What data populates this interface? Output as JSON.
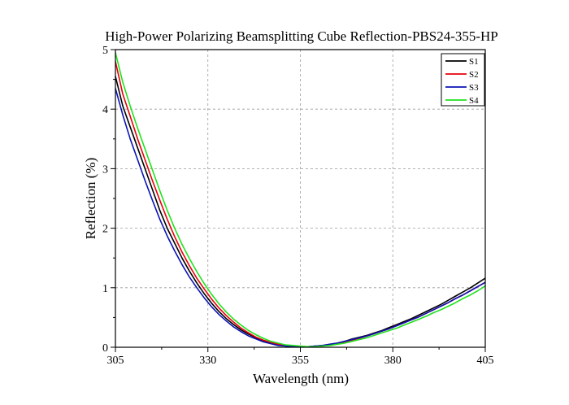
{
  "chart_data": {
    "type": "line",
    "title": "High-Power Polarizing Beamsplitting Cube Reflection-PBS24-355-HP",
    "xlabel": "Wavelength (nm)",
    "ylabel": "Reflection (%)",
    "xlim": [
      305,
      405
    ],
    "ylim": [
      0,
      5
    ],
    "xticks": [
      305,
      330,
      355,
      380,
      405
    ],
    "yticks": [
      0,
      1,
      2,
      3,
      4,
      5
    ],
    "grid": true,
    "legend_position": "top-right",
    "x": [
      305,
      307,
      309,
      311,
      313,
      315,
      317,
      319,
      321,
      323,
      325,
      327,
      329,
      331,
      333,
      335,
      337,
      339,
      341,
      343,
      345,
      347,
      349,
      351,
      353,
      355,
      357,
      359,
      361,
      363,
      365,
      367,
      369,
      371,
      373,
      375,
      377,
      379,
      381,
      383,
      385,
      387,
      389,
      391,
      393,
      395,
      397,
      399,
      401,
      403,
      405
    ],
    "series": [
      {
        "name": "S1",
        "color": "#000000",
        "values": [
          4.55,
          4.05,
          3.7,
          3.35,
          3.0,
          2.65,
          2.3,
          2.0,
          1.75,
          1.5,
          1.28,
          1.08,
          0.9,
          0.74,
          0.6,
          0.48,
          0.38,
          0.29,
          0.22,
          0.16,
          0.11,
          0.07,
          0.04,
          0.02,
          0.01,
          0.01,
          0.01,
          0.02,
          0.03,
          0.05,
          0.07,
          0.1,
          0.14,
          0.17,
          0.2,
          0.24,
          0.28,
          0.33,
          0.38,
          0.43,
          0.48,
          0.54,
          0.6,
          0.66,
          0.72,
          0.79,
          0.86,
          0.93,
          1.0,
          1.08,
          1.16
        ]
      },
      {
        "name": "S2",
        "color": "#e8000b",
        "values": [
          4.8,
          4.25,
          3.88,
          3.5,
          3.15,
          2.8,
          2.47,
          2.15,
          1.86,
          1.6,
          1.37,
          1.16,
          0.98,
          0.81,
          0.66,
          0.53,
          0.42,
          0.32,
          0.24,
          0.17,
          0.12,
          0.08,
          0.05,
          0.03,
          0.02,
          0.01,
          0.01,
          0.01,
          0.02,
          0.04,
          0.06,
          0.09,
          0.12,
          0.15,
          0.19,
          0.23,
          0.27,
          0.31,
          0.36,
          0.41,
          0.46,
          0.51,
          0.57,
          0.63,
          0.69,
          0.75,
          0.82,
          0.88,
          0.95,
          1.02,
          1.09
        ]
      },
      {
        "name": "S3",
        "color": "#0a14b4",
        "values": [
          4.35,
          3.9,
          3.5,
          3.15,
          2.8,
          2.47,
          2.15,
          1.87,
          1.62,
          1.39,
          1.18,
          1.0,
          0.83,
          0.68,
          0.55,
          0.44,
          0.34,
          0.26,
          0.19,
          0.14,
          0.09,
          0.06,
          0.03,
          0.02,
          0.01,
          0.01,
          0.01,
          0.02,
          0.03,
          0.05,
          0.07,
          0.1,
          0.13,
          0.16,
          0.19,
          0.23,
          0.27,
          0.31,
          0.36,
          0.41,
          0.46,
          0.51,
          0.57,
          0.63,
          0.69,
          0.75,
          0.82,
          0.88,
          0.95,
          1.02,
          1.09
        ]
      },
      {
        "name": "S4",
        "color": "#22e11e",
        "values": [
          4.95,
          4.45,
          4.05,
          3.68,
          3.33,
          2.98,
          2.63,
          2.3,
          2.0,
          1.73,
          1.49,
          1.27,
          1.07,
          0.89,
          0.73,
          0.59,
          0.47,
          0.37,
          0.28,
          0.21,
          0.15,
          0.1,
          0.07,
          0.04,
          0.03,
          0.02,
          0.01,
          0.01,
          0.02,
          0.03,
          0.05,
          0.07,
          0.1,
          0.13,
          0.16,
          0.2,
          0.24,
          0.28,
          0.32,
          0.37,
          0.42,
          0.47,
          0.52,
          0.58,
          0.63,
          0.69,
          0.75,
          0.82,
          0.88,
          0.95,
          1.03
        ]
      }
    ]
  }
}
